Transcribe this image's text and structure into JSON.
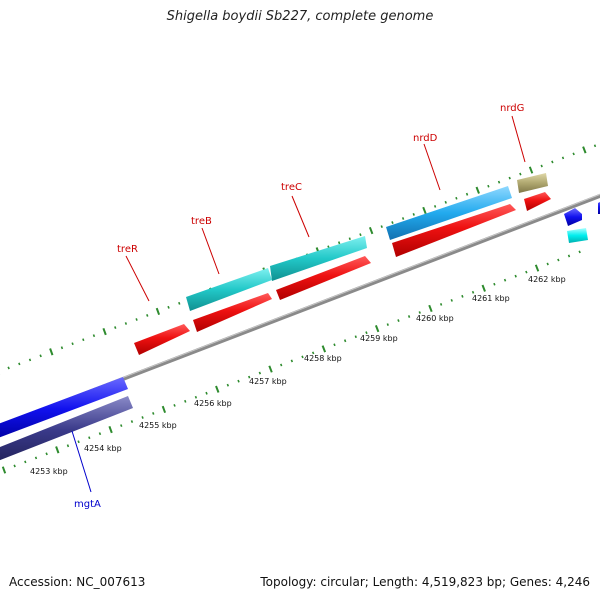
{
  "header": {
    "title": "Shigella boydii Sb227, complete genome"
  },
  "footer": {
    "accession": "Accession: NC_007613",
    "summary": "Topology: circular; Length: 4,519,823 bp; Genes: 4,246"
  },
  "axis": {
    "tick_labels": [
      "4253 kbp",
      "4254 kbp",
      "4255 kbp",
      "4256 kbp",
      "4257 kbp",
      "4258 kbp",
      "4259 kbp",
      "4260 kbp",
      "4261 kbp",
      "4262 kbp"
    ]
  },
  "gene_labels": [
    {
      "name": "mgtA",
      "color": "#0000cc"
    },
    {
      "name": "treR",
      "color": "#cc0000"
    },
    {
      "name": "treB",
      "color": "#cc0000"
    },
    {
      "name": "treC",
      "color": "#cc0000"
    },
    {
      "name": "nrdD",
      "color": "#cc0000"
    },
    {
      "name": "nrdG",
      "color": "#cc0000"
    }
  ],
  "colors": {
    "backbone": "#8a8a8a",
    "tick": "#2e8b2e",
    "cds_red": "#ee1111",
    "cds_teal": "#22c8c8",
    "cds_sky": "#22aaee",
    "cds_blue": "#1111ee",
    "cds_navy": "#3a3a8a",
    "cds_khaki": "#b0a870",
    "cds_cyan": "#00eeee"
  }
}
